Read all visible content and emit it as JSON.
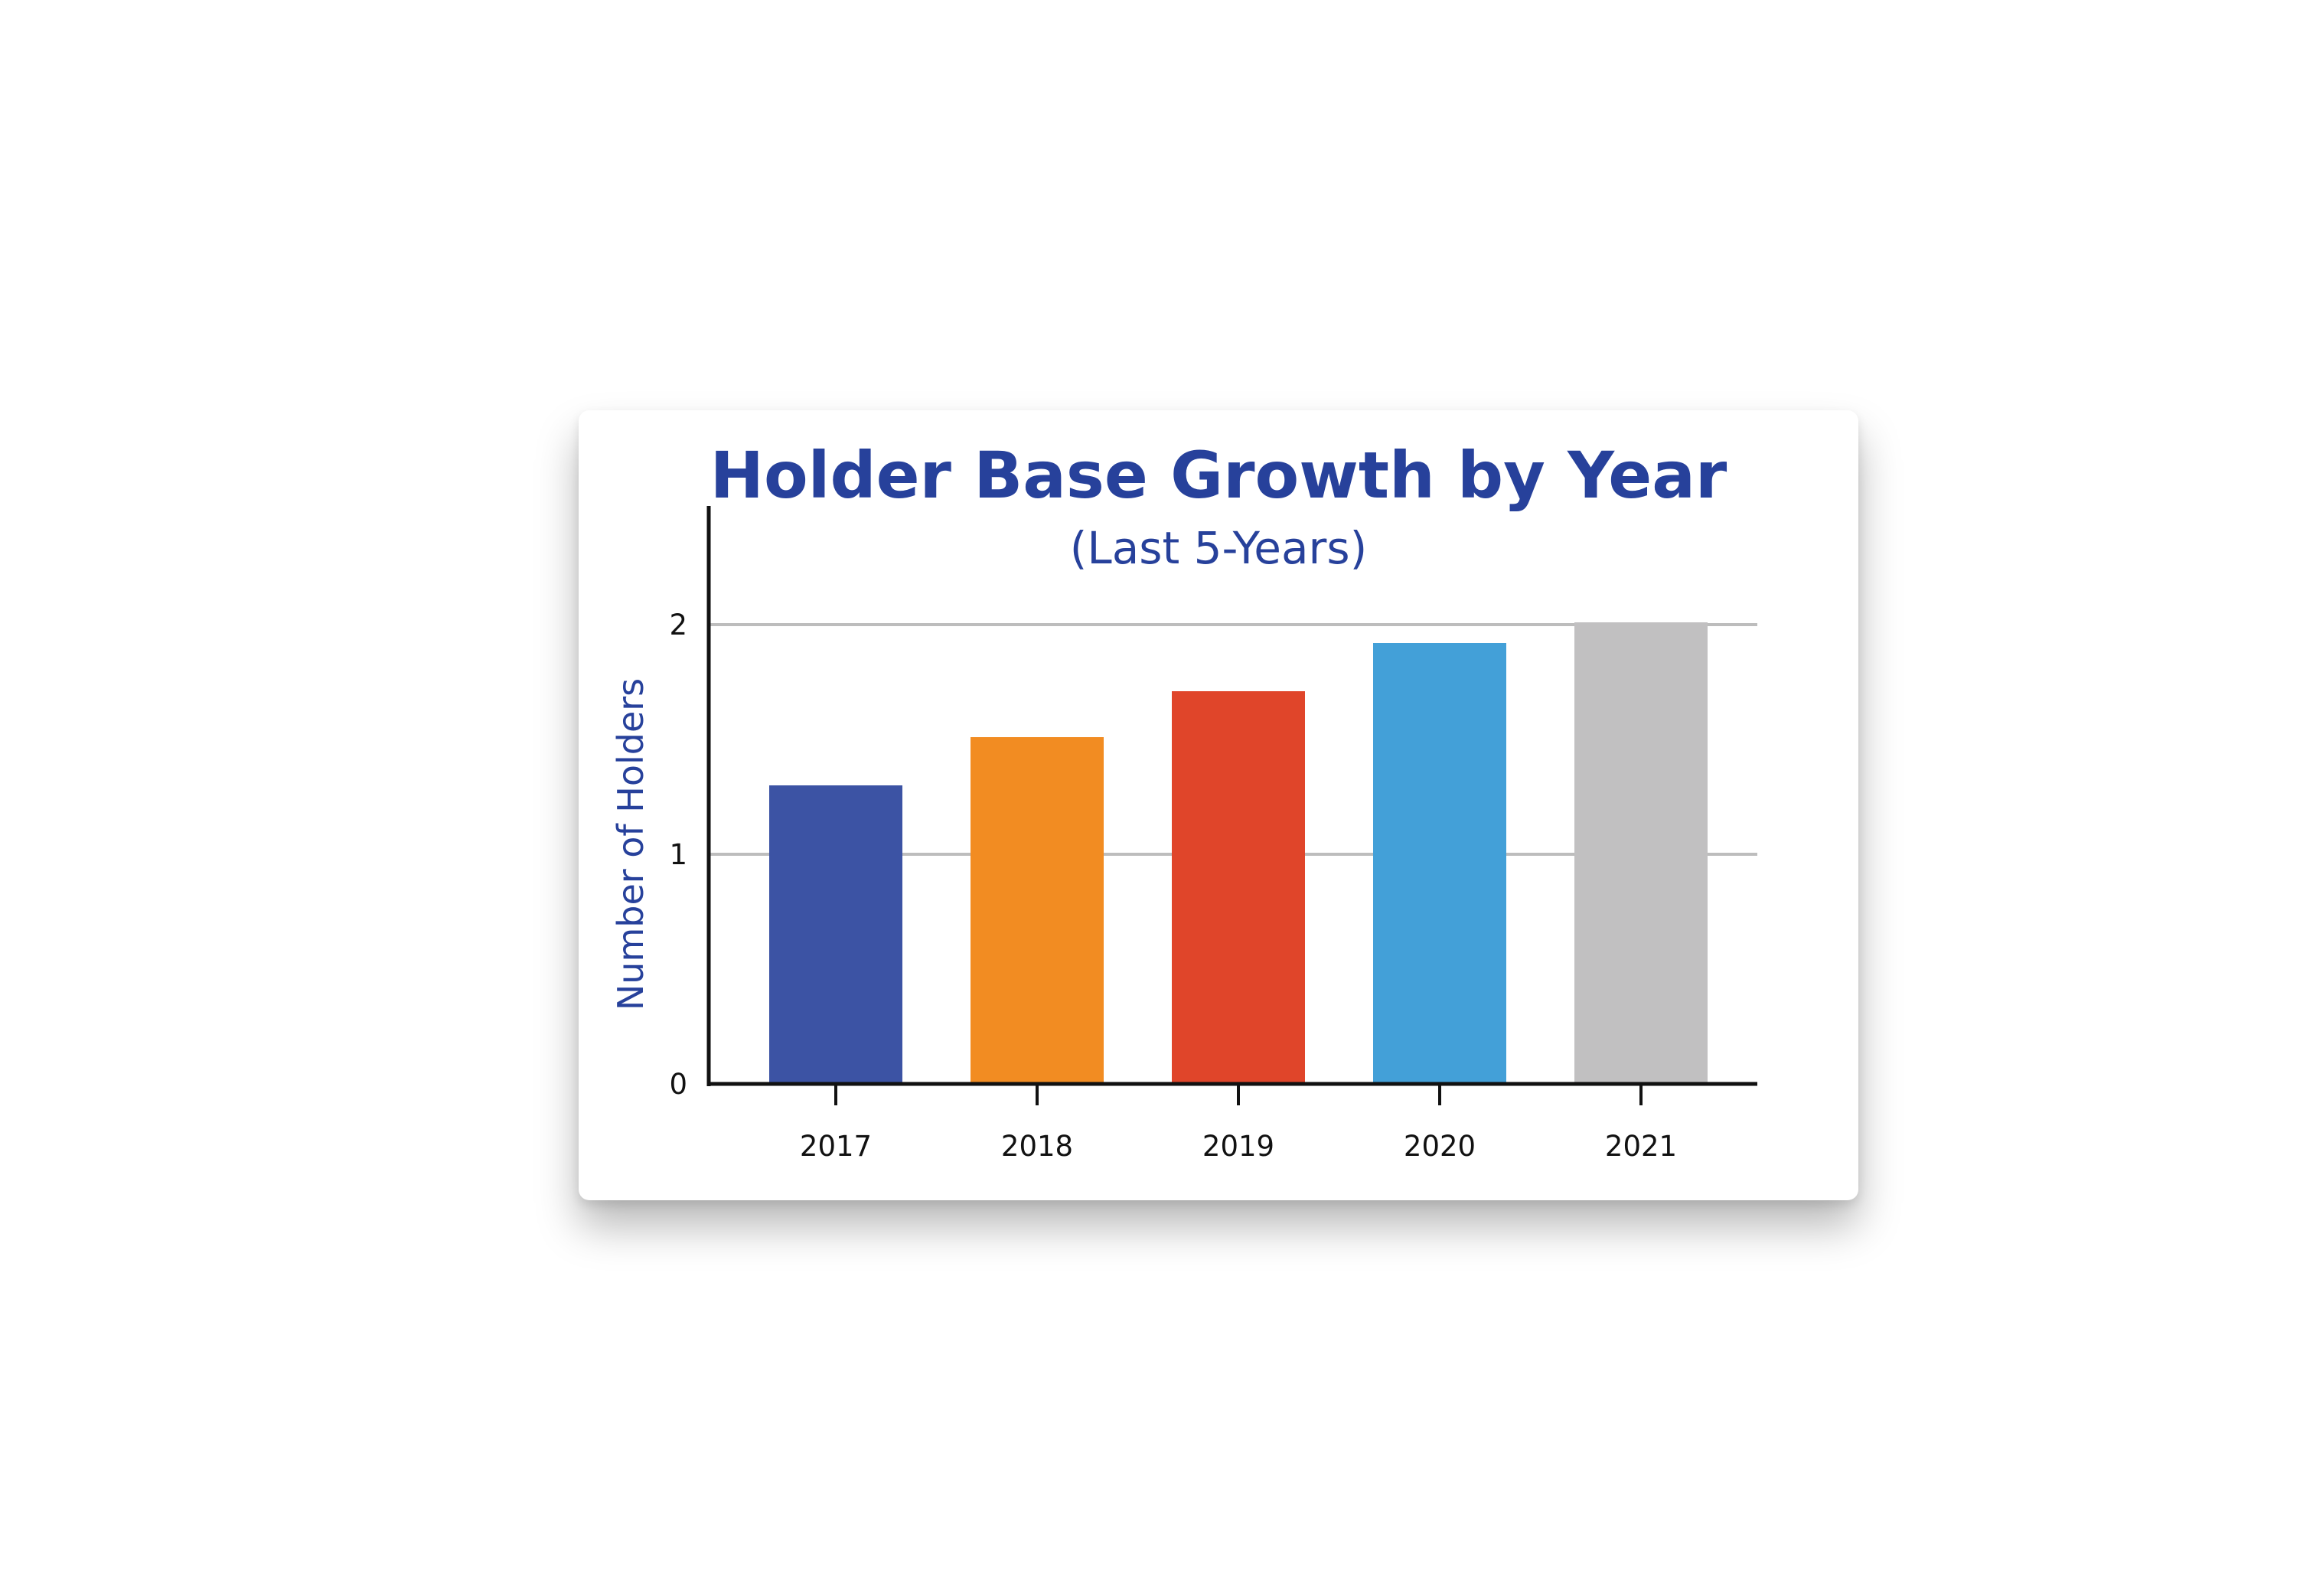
{
  "chart_data": {
    "type": "bar",
    "title": "Holder Base Growth by Year",
    "subtitle": "(Last 5-Years)",
    "ylabel": "Number of Holders",
    "xlabel": "",
    "categories": [
      "2017",
      "2018",
      "2019",
      "2020",
      "2021"
    ],
    "values": [
      1.3,
      1.51,
      1.71,
      1.92,
      2.01
    ],
    "ylim": [
      0,
      2.5
    ],
    "yticks": [
      0,
      1,
      2
    ],
    "ytick_labels": [
      "0",
      "1",
      "2"
    ],
    "grid": true,
    "legend": "none",
    "colors": [
      "#3c53a4",
      "#f28c22",
      "#e0452a",
      "#43a0d8",
      "#c1c0c1"
    ]
  }
}
